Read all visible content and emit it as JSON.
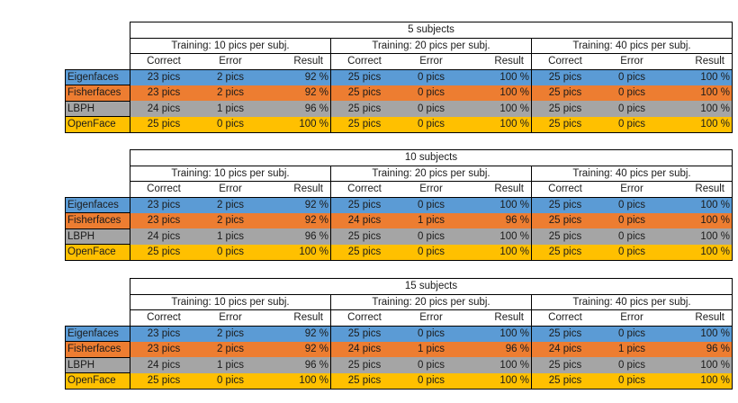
{
  "colors": {
    "eigenfaces": "#5b9bd5",
    "fisherfaces": "#ed7d31",
    "lbph": "#a5a5a5",
    "openface": "#ffc000"
  },
  "tables": [
    {
      "title": "5 subjects",
      "groups": [
        "Training: 10 pics per subj.",
        "Training: 20 pics per subj.",
        "Training: 40 pics per subj."
      ],
      "columns": [
        "Correct",
        "Error",
        "Result"
      ],
      "rows": [
        {
          "label": "Eigenfaces",
          "cells": [
            "23 pics",
            "2 pics",
            "92 %",
            "25 pics",
            "0 pics",
            "100 %",
            "25 pics",
            "0 pics",
            "100 %"
          ]
        },
        {
          "label": "Fisherfaces",
          "cells": [
            "23 pics",
            "2 pics",
            "92 %",
            "25 pics",
            "0 pics",
            "100 %",
            "25 pics",
            "0 pics",
            "100 %"
          ]
        },
        {
          "label": "LBPH",
          "cells": [
            "24 pics",
            "1 pics",
            "96 %",
            "25 pics",
            "0 pics",
            "100 %",
            "25 pics",
            "0 pics",
            "100 %"
          ]
        },
        {
          "label": "OpenFace",
          "cells": [
            "25 pics",
            "0 pics",
            "100 %",
            "25 pics",
            "0 pics",
            "100 %",
            "25 pics",
            "0 pics",
            "100 %"
          ]
        }
      ]
    },
    {
      "title": "10 subjects",
      "groups": [
        "Training: 10 pics per subj.",
        "Training: 20 pics per subj.",
        "Training: 40 pics per subj."
      ],
      "columns": [
        "Correct",
        "Error",
        "Result"
      ],
      "rows": [
        {
          "label": "Eigenfaces",
          "cells": [
            "23 pics",
            "2 pics",
            "92 %",
            "25 pics",
            "0 pics",
            "100 %",
            "25 pics",
            "0 pics",
            "100 %"
          ]
        },
        {
          "label": "Fisherfaces",
          "cells": [
            "23 pics",
            "2 pics",
            "92 %",
            "24 pics",
            "1 pics",
            "96 %",
            "25 pics",
            "0 pics",
            "100 %"
          ]
        },
        {
          "label": "LBPH",
          "cells": [
            "24 pics",
            "1 pics",
            "96 %",
            "25 pics",
            "0 pics",
            "100 %",
            "25 pics",
            "0 pics",
            "100 %"
          ]
        },
        {
          "label": "OpenFace",
          "cells": [
            "25 pics",
            "0 pics",
            "100 %",
            "25 pics",
            "0 pics",
            "100 %",
            "25 pics",
            "0 pics",
            "100 %"
          ]
        }
      ]
    },
    {
      "title": "15 subjects",
      "groups": [
        "Training: 10 pics per subj.",
        "Training: 20 pics per subj.",
        "Training: 40 pics per subj."
      ],
      "columns": [
        "Correct",
        "Error",
        "Result"
      ],
      "rows": [
        {
          "label": "Eigenfaces",
          "cells": [
            "23 pics",
            "2 pics",
            "92 %",
            "25 pics",
            "0 pics",
            "100 %",
            "25 pics",
            "0 pics",
            "100 %"
          ]
        },
        {
          "label": "Fisherfaces",
          "cells": [
            "23 pics",
            "2 pics",
            "92 %",
            "24 pics",
            "1 pics",
            "96 %",
            "24 pics",
            "1 pics",
            "96 %"
          ]
        },
        {
          "label": "LBPH",
          "cells": [
            "24 pics",
            "1 pics",
            "96 %",
            "25 pics",
            "0 pics",
            "100 %",
            "25 pics",
            "0 pics",
            "100 %"
          ]
        },
        {
          "label": "OpenFace",
          "cells": [
            "25 pics",
            "0 pics",
            "100 %",
            "25 pics",
            "0 pics",
            "100 %",
            "25 pics",
            "0 pics",
            "100 %"
          ]
        }
      ]
    }
  ]
}
